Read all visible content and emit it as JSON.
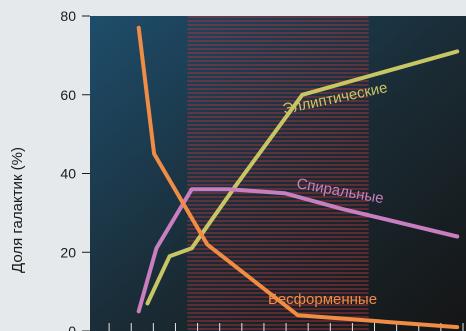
{
  "chart_data": {
    "type": "line",
    "title": "",
    "xlabel": "",
    "ylabel": "Доля галактик (%)",
    "ylim": [
      0,
      80
    ],
    "xlim": [
      0,
      17
    ],
    "y_ticks": [
      0,
      20,
      40,
      60,
      80
    ],
    "x_tick_count": 17,
    "x_tick_labels": [],
    "grid": false,
    "legend": "inline labels",
    "highlight_band": {
      "from": 4.4,
      "to": 12.6,
      "color": "#b0323c"
    },
    "series": [
      {
        "name": "Эллиптические",
        "color": "#c8c664",
        "x": [
          2.6,
          3.6,
          4.6,
          6.6,
          9.6,
          16.6
        ],
        "values": [
          7,
          19,
          21,
          37,
          60,
          71
        ]
      },
      {
        "name": "Спиральные",
        "color": "#c77fc0",
        "x": [
          2.2,
          3.0,
          4.6,
          6.3,
          8.8,
          11.4,
          16.6
        ],
        "values": [
          5,
          21,
          36,
          36,
          35,
          31,
          24
        ]
      },
      {
        "name": "Бесформенные",
        "color": "#f08c44",
        "x": [
          2.2,
          2.9,
          5.3,
          9.4,
          16.6
        ],
        "values": [
          77,
          45,
          22,
          4,
          1
        ]
      }
    ]
  }
}
